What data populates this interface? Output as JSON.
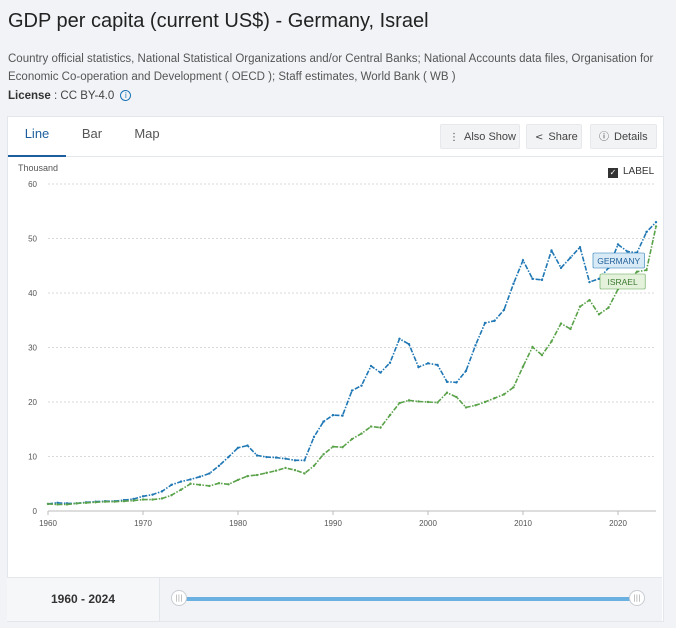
{
  "header": {
    "title": "GDP per capita (current US$) - Germany, Israel",
    "source": "Country official statistics, National Statistical Organizations and/or Central Banks; National Accounts data files, Organisation for Economic Co-operation and Development ( OECD ); Staff estimates, World Bank ( WB )",
    "license_label": "License",
    "license_sep": " : ",
    "license_value": "CC BY-4.0",
    "info_icon": "i"
  },
  "tabs": [
    {
      "label": "Line",
      "active": true
    },
    {
      "label": "Bar",
      "active": false
    },
    {
      "label": "Map",
      "active": false
    }
  ],
  "toolbar": {
    "also_show": "Also Show",
    "share": "Share",
    "details": "Details",
    "also_show_icon": "vertical-dots-icon",
    "share_icon": "share-icon",
    "details_icon": "info-icon"
  },
  "label_toggle": {
    "label": "LABEL",
    "checked": true
  },
  "footer": {
    "range": "1960 - 2024"
  },
  "colors": {
    "germany": "#1f77b4",
    "israel": "#5aa24a",
    "accent": "#1d5f9e",
    "slider": "#6ab0e0"
  },
  "chart_data": {
    "type": "line",
    "ylabel": "Thousand",
    "ylim": [
      0,
      60
    ],
    "yticks": [
      0,
      10,
      20,
      30,
      40,
      50,
      60
    ],
    "xlim": [
      1960,
      2024
    ],
    "xticks": [
      1960,
      1970,
      1980,
      1990,
      2000,
      2010,
      2020
    ],
    "grid": true,
    "series": [
      {
        "name": "GERMANY",
        "x": [
          1960,
          1961,
          1962,
          1963,
          1964,
          1965,
          1966,
          1967,
          1968,
          1969,
          1970,
          1971,
          1972,
          1973,
          1974,
          1975,
          1976,
          1977,
          1978,
          1979,
          1980,
          1981,
          1982,
          1983,
          1984,
          1985,
          1986,
          1987,
          1988,
          1989,
          1990,
          1991,
          1992,
          1993,
          1994,
          1995,
          1996,
          1997,
          1998,
          1999,
          2000,
          2001,
          2002,
          2003,
          2004,
          2005,
          2006,
          2007,
          2008,
          2009,
          2010,
          2011,
          2012,
          2013,
          2014,
          2015,
          2016,
          2017,
          2018,
          2019,
          2020,
          2021,
          2022,
          2023,
          2024
        ],
        "values": [
          1.3,
          1.5,
          1.4,
          1.4,
          1.6,
          1.7,
          1.8,
          1.8,
          2.0,
          2.2,
          2.7,
          3.0,
          3.6,
          4.8,
          5.4,
          5.8,
          6.3,
          6.9,
          8.3,
          9.9,
          11.6,
          12.0,
          10.2,
          9.9,
          9.8,
          9.6,
          9.3,
          9.3,
          13.6,
          16.4,
          17.6,
          17.5,
          22.1,
          23.0,
          26.6,
          25.4,
          27.2,
          31.6,
          30.6,
          26.4,
          27.1,
          26.8,
          23.7,
          23.6,
          25.7,
          30.4,
          34.5,
          34.9,
          36.9,
          41.7,
          46.0,
          42.6,
          42.4,
          47.8,
          44.6,
          46.5,
          48.4,
          42.0,
          42.6,
          44.6,
          48.9,
          47.6,
          47.4,
          51.2,
          53.0
        ]
      },
      {
        "name": "ISRAEL",
        "x": [
          1960,
          1961,
          1962,
          1963,
          1964,
          1965,
          1966,
          1967,
          1968,
          1969,
          1970,
          1971,
          1972,
          1973,
          1974,
          1975,
          1976,
          1977,
          1978,
          1979,
          1980,
          1981,
          1982,
          1983,
          1984,
          1985,
          1986,
          1987,
          1988,
          1989,
          1990,
          1991,
          1992,
          1993,
          1994,
          1995,
          1996,
          1997,
          1998,
          1999,
          2000,
          2001,
          2002,
          2003,
          2004,
          2005,
          2006,
          2007,
          2008,
          2009,
          2010,
          2011,
          2012,
          2013,
          2014,
          2015,
          2016,
          2017,
          2018,
          2019,
          2020,
          2021,
          2022,
          2023,
          2024
        ],
        "values": [
          1.3,
          1.2,
          1.2,
          1.4,
          1.5,
          1.6,
          1.7,
          1.7,
          1.8,
          1.9,
          2.1,
          2.1,
          2.3,
          2.9,
          3.9,
          5.0,
          4.8,
          4.6,
          5.1,
          4.9,
          5.7,
          6.4,
          6.6,
          7.0,
          7.4,
          7.9,
          7.5,
          6.9,
          8.3,
          10.4,
          11.8,
          11.7,
          13.2,
          14.2,
          15.5,
          15.3,
          17.6,
          19.8,
          20.3,
          20.1,
          20.0,
          19.9,
          21.7,
          20.9,
          19.0,
          19.4,
          20.0,
          20.7,
          21.4,
          22.7,
          26.5,
          30.1,
          28.6,
          31.1,
          34.4,
          33.4,
          37.5,
          38.7,
          36.1,
          37.3,
          40.7,
          42.1,
          43.9,
          44.2,
          52.2
        ]
      }
    ],
    "labels_shown": true
  }
}
